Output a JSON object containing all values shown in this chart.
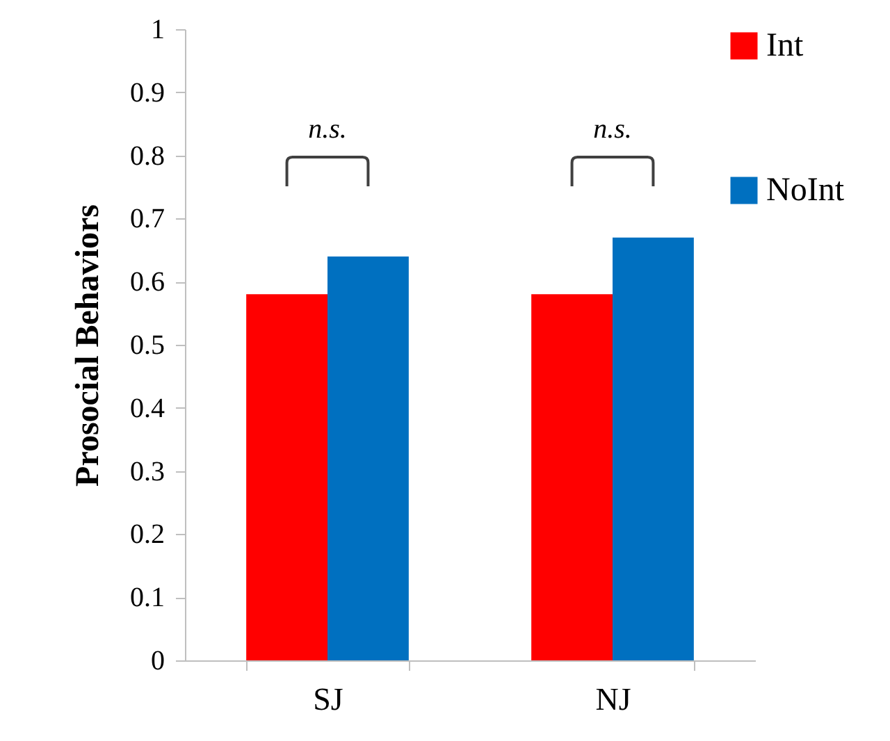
{
  "chart_data": {
    "type": "bar",
    "ylabel": "Prosocial Behaviors",
    "categories": [
      "SJ",
      "NJ"
    ],
    "series": [
      {
        "name": "Int",
        "color": "#ff0000",
        "values": [
          0.58,
          0.58
        ]
      },
      {
        "name": "NoInt",
        "color": "#0070c0",
        "values": [
          0.64,
          0.67
        ]
      }
    ],
    "ylim": [
      0,
      1
    ],
    "yticks": [
      0,
      0.1,
      0.2,
      0.3,
      0.4,
      0.5,
      0.6,
      0.7,
      0.8,
      0.9,
      1
    ],
    "grid": false,
    "legend": "right",
    "annotations": [
      "n.s.",
      "n.s."
    ]
  }
}
